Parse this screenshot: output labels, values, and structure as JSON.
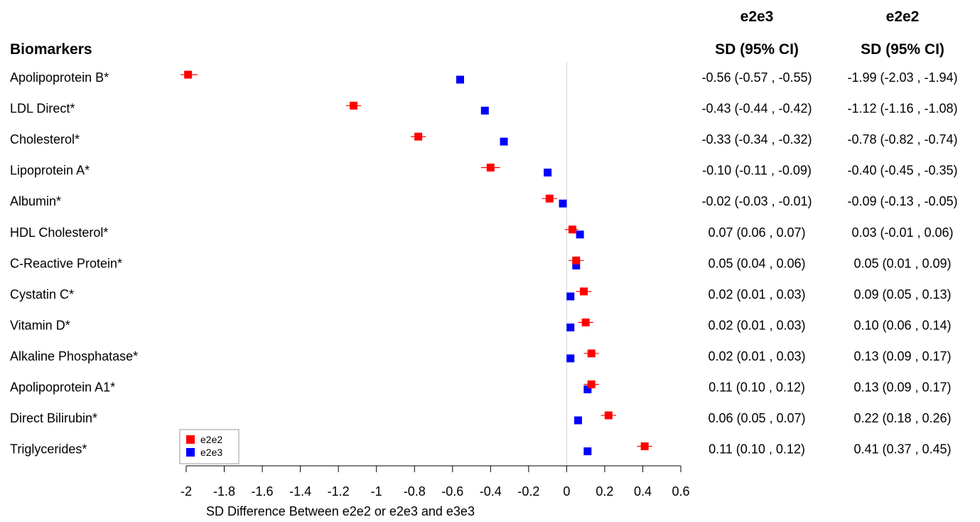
{
  "chart_data": {
    "type": "scatter",
    "title": "",
    "xlabel": "SD Difference Between e2e2 or e2e3 and e3e3",
    "ylabel": "",
    "xlim": [
      -2,
      0.6
    ],
    "x_ticks": [
      "-2",
      "-1.8",
      "-1.6",
      "-1.4",
      "-1.2",
      "-1",
      "-0.8",
      "-0.6",
      "-0.4",
      "-0.2",
      "0",
      "0.2",
      "0.4",
      "0.6"
    ],
    "reference_line": 0,
    "grid": false,
    "legend_position": "bottom-left",
    "categories_header": "Biomarkers",
    "categories": [
      "Apolipoprotein B*",
      "LDL Direct*",
      "Cholesterol*",
      "Lipoprotein A*",
      "Albumin*",
      "HDL Cholesterol*",
      "C-Reactive Protein*",
      "Cystatin C*",
      "Vitamin D*",
      "Alkaline Phosphatase*",
      "Apolipoprotein A1*",
      "Direct Bilirubin*",
      "Triglycerides*"
    ],
    "series": [
      {
        "name": "e2e2",
        "color": "#ff0000",
        "values": [
          -1.99,
          -1.12,
          -0.78,
          -0.4,
          -0.09,
          0.03,
          0.05,
          0.09,
          0.1,
          0.13,
          0.13,
          0.22,
          0.41
        ],
        "ci_low": [
          -2.03,
          -1.16,
          -0.82,
          -0.45,
          -0.13,
          -0.01,
          0.01,
          0.05,
          0.06,
          0.09,
          0.09,
          0.18,
          0.37
        ],
        "ci_high": [
          -1.94,
          -1.08,
          -0.74,
          -0.35,
          -0.05,
          0.06,
          0.09,
          0.13,
          0.14,
          0.17,
          0.17,
          0.26,
          0.45
        ]
      },
      {
        "name": "e2e3",
        "color": "#0000ff",
        "values": [
          -0.56,
          -0.43,
          -0.33,
          -0.1,
          -0.02,
          0.07,
          0.05,
          0.02,
          0.02,
          0.02,
          0.11,
          0.06,
          0.11
        ],
        "ci_low": [
          -0.57,
          -0.44,
          -0.34,
          -0.11,
          -0.03,
          0.06,
          0.04,
          0.01,
          0.01,
          0.01,
          0.1,
          0.05,
          0.1
        ],
        "ci_high": [
          -0.55,
          -0.42,
          -0.32,
          -0.09,
          -0.01,
          0.07,
          0.06,
          0.03,
          0.03,
          0.03,
          0.12,
          0.07,
          0.12
        ]
      }
    ],
    "table": {
      "columns": [
        {
          "group": "e2e3",
          "header": "SD (95% CI)",
          "rows": [
            "-0.56 (-0.57 , -0.55)",
            "-0.43 (-0.44 , -0.42)",
            "-0.33 (-0.34 , -0.32)",
            "-0.10 (-0.11 , -0.09)",
            "-0.02 (-0.03 , -0.01)",
            "0.07 (0.06 , 0.07)",
            "0.05 (0.04 , 0.06)",
            "0.02 (0.01 , 0.03)",
            "0.02 (0.01 , 0.03)",
            "0.02 (0.01 , 0.03)",
            "0.11 (0.10 , 0.12)",
            "0.06 (0.05 , 0.07)",
            "0.11 (0.10 , 0.12)"
          ]
        },
        {
          "group": "e2e2",
          "header": "SD (95% CI)",
          "rows": [
            "-1.99 (-2.03 , -1.94)",
            "-1.12 (-1.16 , -1.08)",
            "-0.78 (-0.82 , -0.74)",
            "-0.40 (-0.45 , -0.35)",
            "-0.09 (-0.13 , -0.05)",
            "0.03 (-0.01 , 0.06)",
            "0.05 (0.01 , 0.09)",
            "0.09 (0.05 , 0.13)",
            "0.10 (0.06 , 0.14)",
            "0.13 (0.09 , 0.17)",
            "0.13 (0.09 , 0.17)",
            "0.22 (0.18 , 0.26)",
            "0.41 (0.37 , 0.45)"
          ]
        }
      ]
    }
  }
}
